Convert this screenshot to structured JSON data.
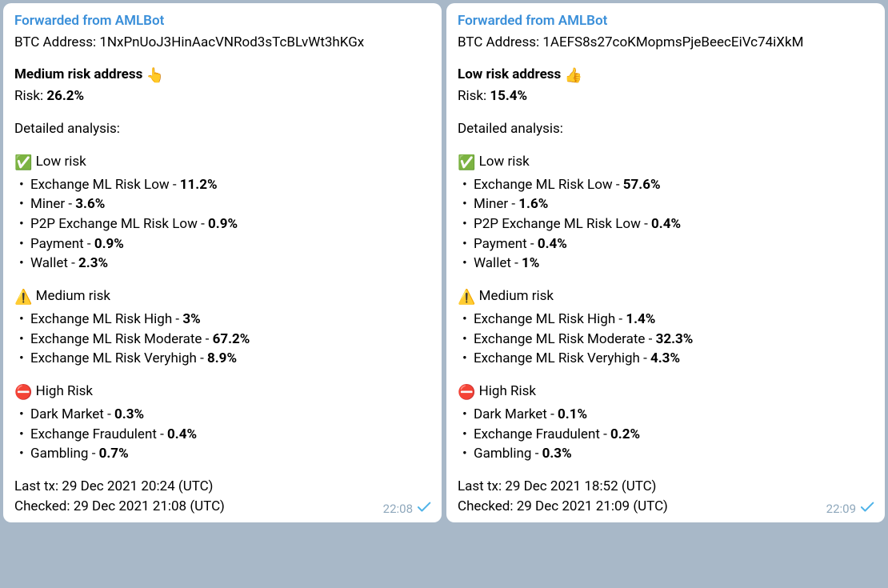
{
  "messages": [
    {
      "forwarded_label": "Forwarded from AMLBot",
      "address_label": "BTC Address: ",
      "address": "1NxPnUoJ3HinAacVNRod3sTcBLvWt3hKGx",
      "risk_title": "Medium risk address ",
      "risk_emoji": "👆",
      "risk_label": "Risk: ",
      "risk_value": "26.2%",
      "detailed_label": "Detailed analysis:",
      "sections": [
        {
          "emoji": "✅",
          "title": " Low risk",
          "items": [
            {
              "label": "Exchange ML Risk Low - ",
              "value": "11.2%"
            },
            {
              "label": "Miner - ",
              "value": "3.6%"
            },
            {
              "label": "P2P Exchange ML Risk Low - ",
              "value": "0.9%"
            },
            {
              "label": "Payment - ",
              "value": "0.9%"
            },
            {
              "label": "Wallet - ",
              "value": "2.3%"
            }
          ]
        },
        {
          "emoji": "⚠️",
          "title": " Medium risk",
          "items": [
            {
              "label": "Exchange ML Risk High - ",
              "value": "3%"
            },
            {
              "label": "Exchange ML Risk Moderate - ",
              "value": "67.2%"
            },
            {
              "label": "Exchange ML Risk Veryhigh - ",
              "value": "8.9%"
            }
          ]
        },
        {
          "emoji": "⛔",
          "title": " High Risk",
          "items": [
            {
              "label": "Dark Market - ",
              "value": "0.3%"
            },
            {
              "label": "Exchange Fraudulent - ",
              "value": "0.4%"
            },
            {
              "label": "Gambling - ",
              "value": "0.7%"
            }
          ]
        }
      ],
      "last_tx": "Last tx: 29 Dec 2021 20:24 (UTC)",
      "checked": "Checked: 29 Dec 2021 21:08 (UTC)",
      "time": "22:08"
    },
    {
      "forwarded_label": "Forwarded from AMLBot",
      "address_label": "BTC Address: ",
      "address": "1AEFS8s27coKMopmsPjeBeecEiVc74iXkM",
      "risk_title": "Low risk address ",
      "risk_emoji": "👍",
      "risk_label": "Risk: ",
      "risk_value": "15.4%",
      "detailed_label": "Detailed analysis:",
      "sections": [
        {
          "emoji": "✅",
          "title": " Low risk",
          "items": [
            {
              "label": "Exchange ML Risk Low - ",
              "value": "57.6%"
            },
            {
              "label": "Miner - ",
              "value": "1.6%"
            },
            {
              "label": "P2P Exchange ML Risk Low - ",
              "value": "0.4%"
            },
            {
              "label": "Payment - ",
              "value": "0.4%"
            },
            {
              "label": "Wallet - ",
              "value": "1%"
            }
          ]
        },
        {
          "emoji": "⚠️",
          "title": " Medium risk",
          "items": [
            {
              "label": "Exchange ML Risk High - ",
              "value": "1.4%"
            },
            {
              "label": "Exchange ML Risk Moderate - ",
              "value": "32.3%"
            },
            {
              "label": "Exchange ML Risk Veryhigh - ",
              "value": "4.3%"
            }
          ]
        },
        {
          "emoji": "⛔",
          "title": " High Risk",
          "items": [
            {
              "label": "Dark Market - ",
              "value": "0.1%"
            },
            {
              "label": "Exchange Fraudulent - ",
              "value": "0.2%"
            },
            {
              "label": "Gambling - ",
              "value": "0.3%"
            }
          ]
        }
      ],
      "last_tx": "Last tx: 29 Dec 2021 18:52 (UTC)",
      "checked": "Checked: 29 Dec 2021 21:09 (UTC)",
      "time": "22:09"
    }
  ],
  "colors": {
    "background": "#a8b8c8",
    "message_bg": "#ffffff",
    "link_color": "#3a8fd9",
    "text_color": "#000000",
    "timestamp_color": "#8fa8bc",
    "check_color": "#4fb3e8"
  }
}
